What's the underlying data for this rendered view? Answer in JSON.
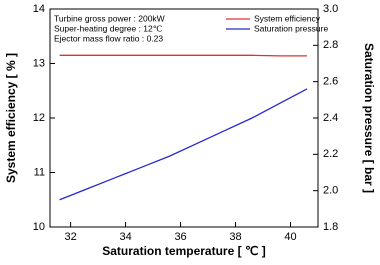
{
  "chart_data": {
    "type": "line",
    "annotations": [
      "Turbine gross power : 200kW",
      "Super-heating degree : 12℃",
      "Ejector mass flow ratio : 0.23"
    ],
    "xlabel": "Saturation temperature [ ℃ ]",
    "ylabel": "System efficiency [ % ]",
    "y2label": "Saturation pressure [ bar ]",
    "x": [
      31.6,
      32.6,
      33.6,
      34.6,
      35.6,
      36.6,
      37.6,
      38.6,
      39.6,
      40.6
    ],
    "series": [
      {
        "name": "System efficiency",
        "color": "#e03030",
        "values": [
          13.15,
          13.15,
          13.15,
          13.15,
          13.15,
          13.15,
          13.15,
          13.15,
          13.14,
          13.14
        ]
      },
      {
        "name": "Saturation pressure",
        "color": "#2828d0",
        "axis": "y2",
        "values": [
          1.95,
          2.01,
          2.07,
          2.13,
          2.19,
          2.26,
          2.33,
          2.4,
          2.48,
          2.56
        ]
      }
    ],
    "xlim": [
      31.25,
      41
    ],
    "xticks": [
      32,
      34,
      36,
      38,
      40
    ],
    "ylim": [
      10,
      14
    ],
    "yticks": [
      10,
      11,
      12,
      13,
      14
    ],
    "y2lim": [
      1.8,
      3.0
    ],
    "y2ticks": [
      1.8,
      {
        "value": 2,
        "label": "2.0"
      },
      2.2,
      2.4,
      2.6,
      2.8,
      {
        "value": 3,
        "label": "3.0"
      }
    ],
    "legend": "upper right"
  }
}
